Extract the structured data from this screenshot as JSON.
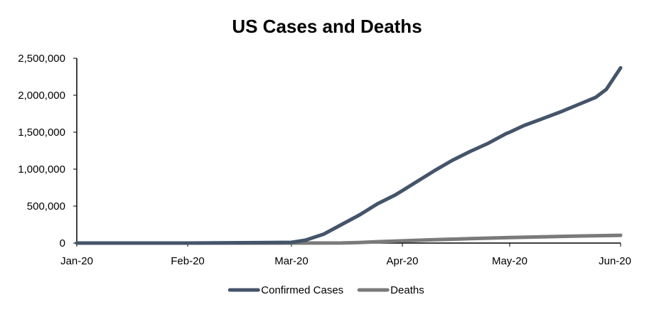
{
  "chart_data": {
    "type": "line",
    "title": "US Cases and Deaths",
    "xlabel": "",
    "ylabel": "",
    "ylim": [
      0,
      2500000
    ],
    "y_ticks": [
      0,
      500000,
      1000000,
      1500000,
      2000000,
      2500000
    ],
    "y_tick_labels": [
      "0",
      "500,000",
      "1,000,000",
      "1,500,000",
      "2,000,000",
      "2,500,000"
    ],
    "x_range": [
      "2020-01-01",
      "2020-06-01"
    ],
    "x_ticks": [
      "2020-01-01",
      "2020-02-01",
      "2020-03-01",
      "2020-04-01",
      "2020-05-01",
      "2020-06-01"
    ],
    "x_tick_labels": [
      "Jan-20",
      "Feb-20",
      "Mar-20",
      "Apr-20",
      "May-20",
      "Jun-20"
    ],
    "grid": false,
    "legend_position": "bottom",
    "series": [
      {
        "name": "Confirmed Cases",
        "color": "#44546a",
        "points": [
          [
            "2020-01-01",
            0
          ],
          [
            "2020-02-01",
            0
          ],
          [
            "2020-03-01",
            10000
          ],
          [
            "2020-03-05",
            40000
          ],
          [
            "2020-03-10",
            120000
          ],
          [
            "2020-03-15",
            250000
          ],
          [
            "2020-03-20",
            380000
          ],
          [
            "2020-03-25",
            530000
          ],
          [
            "2020-03-30",
            650000
          ],
          [
            "2020-04-01",
            710000
          ],
          [
            "2020-04-05",
            830000
          ],
          [
            "2020-04-10",
            980000
          ],
          [
            "2020-04-15",
            1120000
          ],
          [
            "2020-04-20",
            1240000
          ],
          [
            "2020-04-25",
            1350000
          ],
          [
            "2020-04-30",
            1480000
          ],
          [
            "2020-05-01",
            1500000
          ],
          [
            "2020-05-05",
            1590000
          ],
          [
            "2020-05-10",
            1680000
          ],
          [
            "2020-05-15",
            1770000
          ],
          [
            "2020-05-20",
            1870000
          ],
          [
            "2020-05-25",
            1970000
          ],
          [
            "2020-05-28",
            2080000
          ],
          [
            "2020-06-01",
            2370000
          ]
        ]
      },
      {
        "name": "Deaths",
        "color": "#7a7a7a",
        "points": [
          [
            "2020-01-01",
            0
          ],
          [
            "2020-02-01",
            0
          ],
          [
            "2020-03-15",
            1000
          ],
          [
            "2020-03-20",
            8000
          ],
          [
            "2020-03-25",
            18000
          ],
          [
            "2020-04-01",
            30000
          ],
          [
            "2020-04-10",
            45000
          ],
          [
            "2020-04-20",
            60000
          ],
          [
            "2020-05-01",
            75000
          ],
          [
            "2020-05-10",
            85000
          ],
          [
            "2020-05-20",
            95000
          ],
          [
            "2020-06-01",
            105000
          ]
        ]
      }
    ]
  }
}
